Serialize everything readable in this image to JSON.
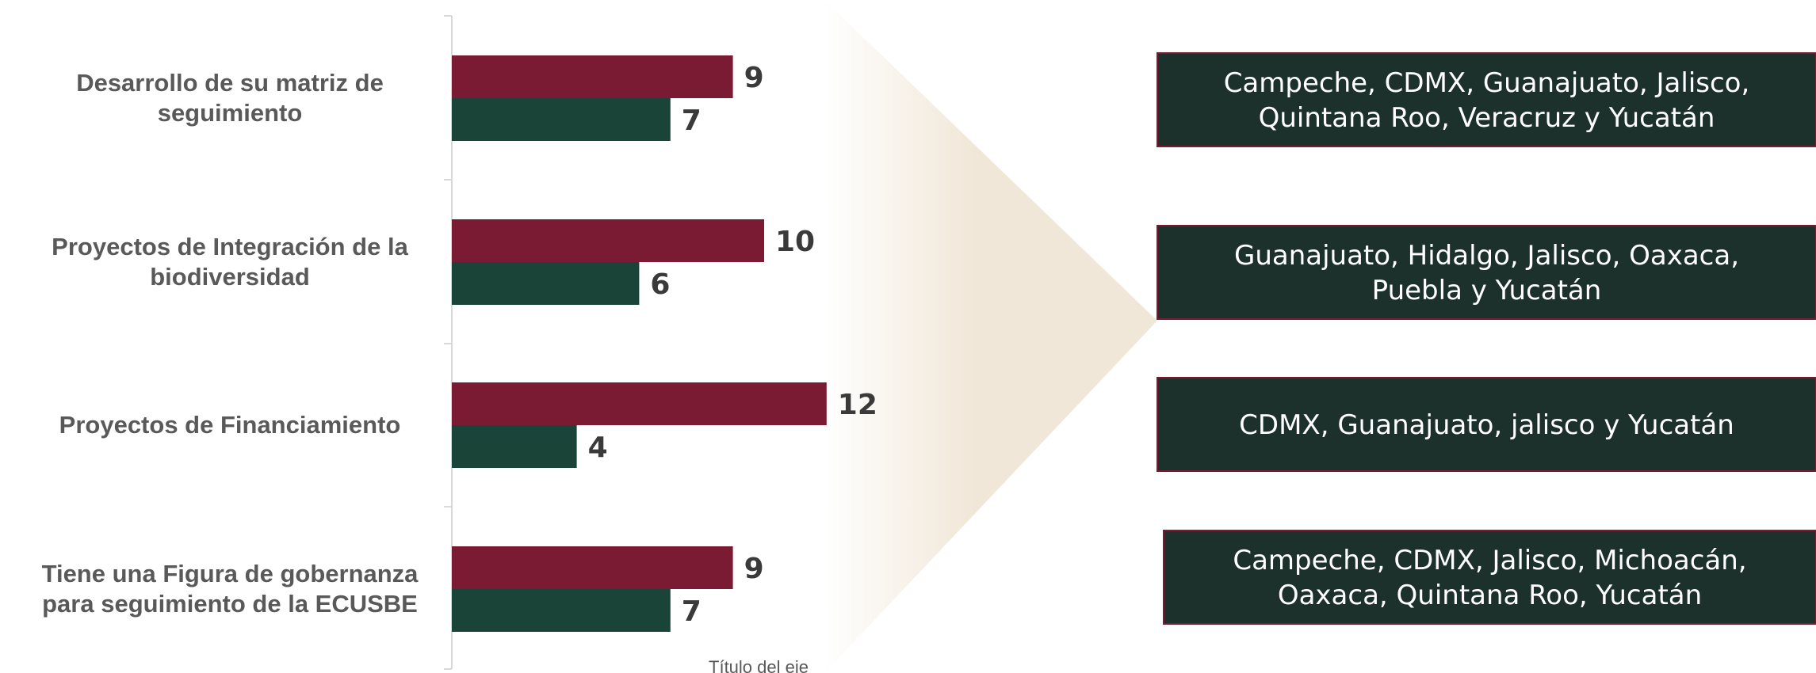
{
  "chart_data": {
    "type": "bar",
    "orientation": "horizontal",
    "categories": [
      [
        "Desarrollo de su matriz de",
        "seguimiento"
      ],
      [
        "Proyectos de Integración de la",
        "biodiversidad"
      ],
      [
        "Proyectos de Financiamiento"
      ],
      [
        "Tiene una Figura de gobernanza",
        "para seguimiento de la ECUSBE"
      ]
    ],
    "series": [
      {
        "values": [
          9,
          10,
          12,
          9
        ],
        "color": "#7a1a33"
      },
      {
        "values": [
          7,
          6,
          4,
          7
        ],
        "color": "#1b4439"
      }
    ],
    "xlabel": "Título del eje",
    "ylabel": "",
    "xlim": [
      0,
      17
    ],
    "grid": false,
    "legend": "none"
  },
  "annotations": {
    "state_boxes": [
      [
        "Campeche, CDMX, Guanajuato, Jalisco,",
        "Quintana Roo, Veracruz y Yucatán"
      ],
      [
        "Guanajuato, Hidalgo, Jalisco, Oaxaca,",
        "Puebla  y Yucatán"
      ],
      [
        "CDMX, Guanajuato, jalisco y Yucatán"
      ],
      [
        "Campeche, CDMX,  Jalisco, Michoacán,",
        "Oaxaca, Quintana Roo,  Yucatán"
      ]
    ],
    "box_fill": "#1c302c",
    "box_border": "#7a1a33",
    "arrow_color": "#f1e7d8"
  }
}
